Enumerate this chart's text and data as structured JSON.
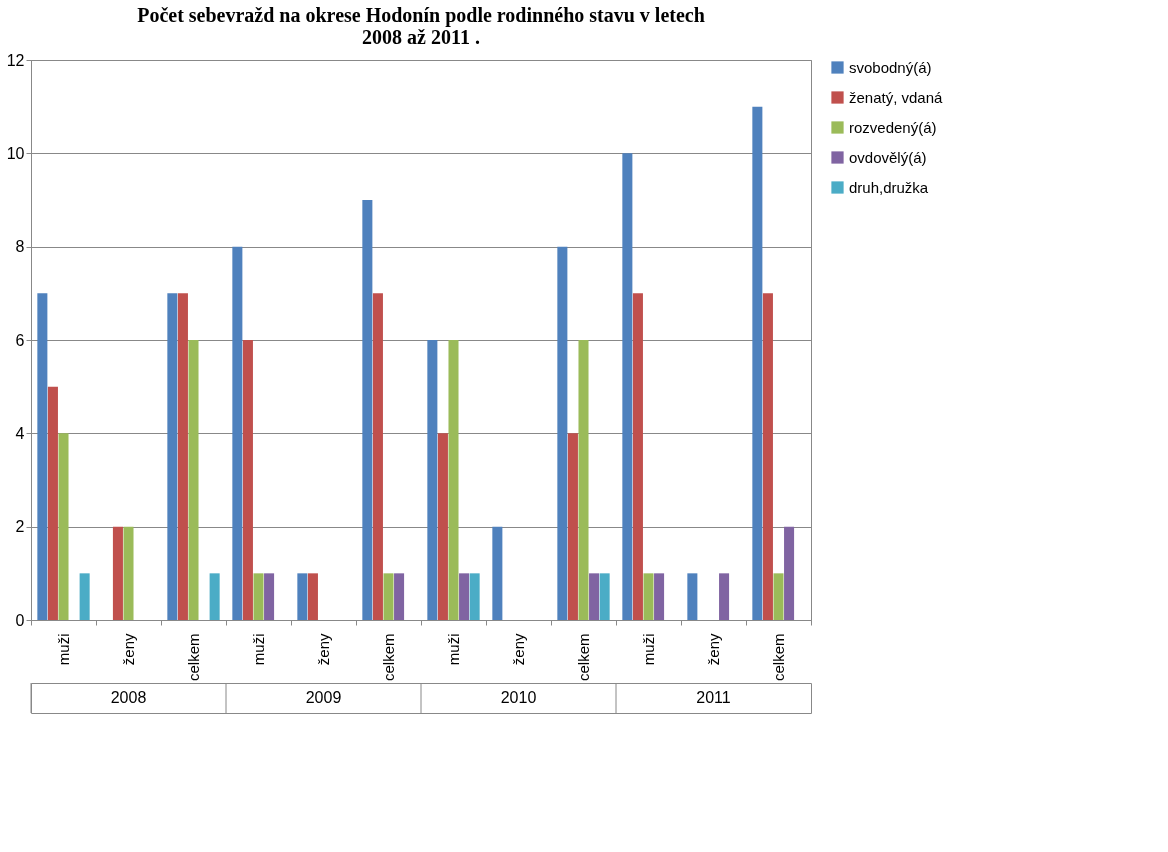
{
  "chart_data": {
    "type": "bar",
    "title": "Počet sebevražd na okrese Hodonín podle rodinného stavu v letech\n2008 až 2011 .",
    "categories": [
      "muži",
      "ženy",
      "celkem",
      "muži",
      "ženy",
      "celkem",
      "muži",
      "ženy",
      "celkem",
      "muži",
      "ženy",
      "celkem"
    ],
    "series": [
      {
        "name": "svobodný(á)",
        "color": "#4f81bd",
        "values": [
          7,
          0,
          7,
          8,
          1,
          9,
          6,
          2,
          8,
          10,
          1,
          11
        ]
      },
      {
        "name": "ženatý, vdaná",
        "color": "#c0504d",
        "values": [
          5,
          2,
          7,
          6,
          1,
          7,
          4,
          0,
          4,
          7,
          0,
          7
        ]
      },
      {
        "name": "rozvedený(á)",
        "color": "#9bbb59",
        "values": [
          4,
          2,
          6,
          1,
          0,
          1,
          6,
          0,
          6,
          1,
          0,
          1
        ]
      },
      {
        "name": "ovdovělý(á)",
        "color": "#8064a2",
        "values": [
          0,
          0,
          0,
          1,
          0,
          1,
          1,
          0,
          1,
          1,
          1,
          2
        ]
      },
      {
        "name": "druh,družka",
        "color": "#4bacc6",
        "values": [
          1,
          0,
          1,
          0,
          0,
          0,
          1,
          0,
          1,
          0,
          0,
          0
        ]
      }
    ],
    "annotations": [
      "2008",
      "2009",
      "2010",
      "2011"
    ],
    "ylim": [
      0,
      12
    ],
    "yticks": [
      0,
      2,
      4,
      6,
      8,
      10,
      12
    ],
    "grid": "y",
    "legend": "right"
  }
}
